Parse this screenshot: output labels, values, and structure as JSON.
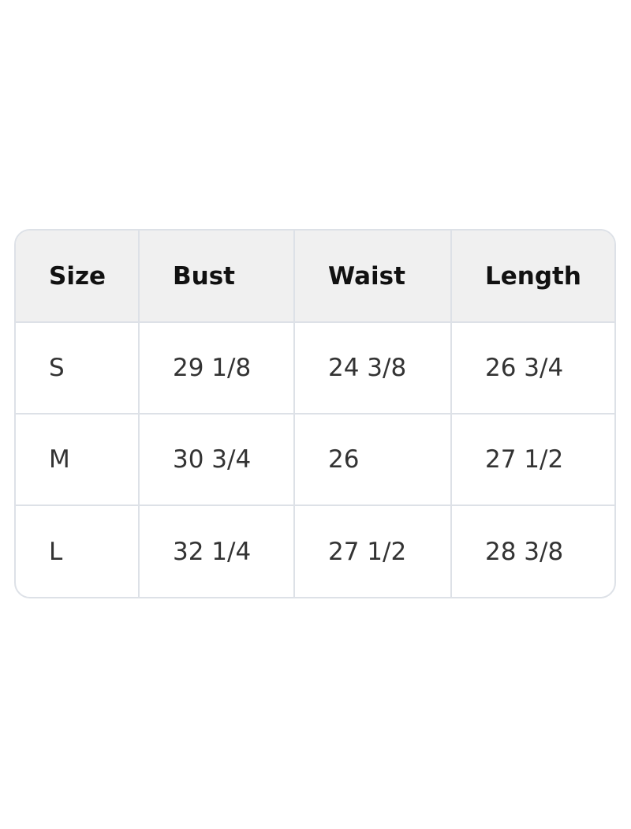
{
  "table": {
    "headers": [
      "Size",
      "Bust",
      "Waist",
      "Length"
    ],
    "rows": [
      [
        "S",
        "29 1/8",
        "24 3/8",
        "26 3/4"
      ],
      [
        "M",
        "30 3/4",
        "26",
        "27 1/2"
      ],
      [
        "L",
        "32 1/4",
        "27 1/2",
        "28 3/8"
      ]
    ]
  }
}
